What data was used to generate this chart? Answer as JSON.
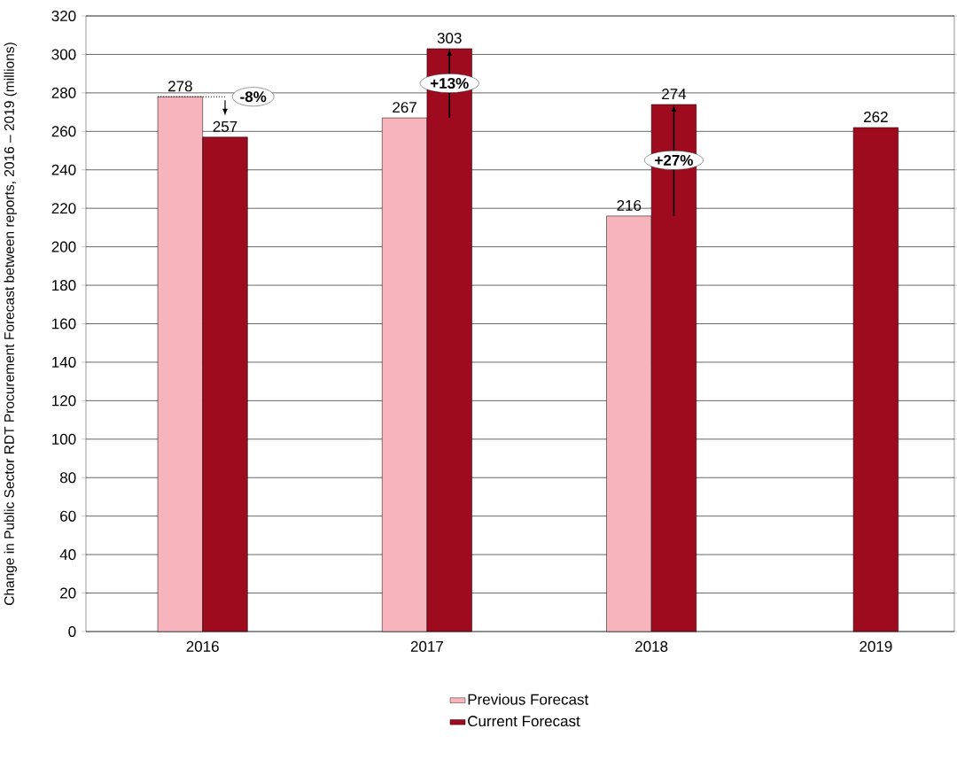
{
  "chart_data": {
    "type": "bar",
    "ylabel": "Change in Public Sector  RDT Procurement Forecast between reports, 2016 – 2019 (millions)",
    "categories": [
      "2016",
      "2017",
      "2018",
      "2019"
    ],
    "series": [
      {
        "name": "Previous Forecast",
        "color": "#f8b4bc",
        "values": [
          278,
          267,
          216,
          null
        ]
      },
      {
        "name": "Current Forecast",
        "color": "#9e0b1e",
        "values": [
          257,
          303,
          274,
          262
        ]
      }
    ],
    "ylim": [
      0,
      320
    ],
    "yticks": [
      0,
      20,
      40,
      60,
      80,
      100,
      120,
      140,
      160,
      180,
      200,
      220,
      240,
      260,
      280,
      300,
      320
    ],
    "grid": "y",
    "legend": "bottom",
    "data_labels": true,
    "annotations": [
      {
        "text": "-8%",
        "x": "2016",
        "y": 278
      },
      {
        "text": "+13%",
        "x": "2017",
        "y": 285
      },
      {
        "text": "+27%",
        "x": "2018",
        "y": 245
      }
    ]
  }
}
